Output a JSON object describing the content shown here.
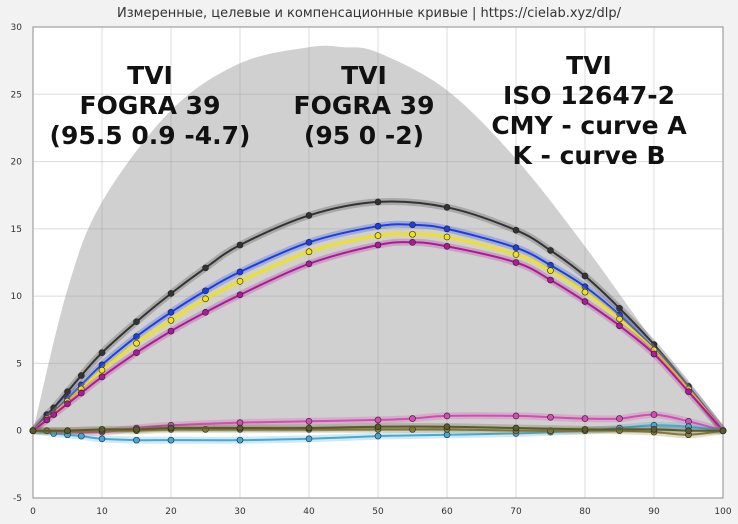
{
  "chart_data": {
    "type": "line",
    "title": "Измеренные, целевые и компенсационные кривые | https://cielab.xyz/dlp/",
    "xlim": [
      0,
      100
    ],
    "ylim": [
      -5,
      30
    ],
    "x_ticks": [
      0,
      10,
      20,
      30,
      40,
      50,
      60,
      70,
      80,
      90,
      100
    ],
    "y_ticks": [
      -5,
      0,
      5,
      10,
      15,
      20,
      25,
      30
    ],
    "grid": true,
    "annotations": [
      {
        "id": "ann1",
        "lines": [
          "TVI",
          "FOGRA 39",
          "(95.5 0.9 -4.7)"
        ]
      },
      {
        "id": "ann2",
        "lines": [
          "TVI",
          "FOGRA 39",
          "(95 0 -2)"
        ]
      },
      {
        "id": "ann3",
        "lines": [
          "TVI",
          "ISO 12647-2",
          "CMY - curve A",
          "K - curve B"
        ]
      }
    ],
    "tolerance_band": {
      "color": "#c8c8c8",
      "x": [
        0,
        5,
        10,
        20,
        30,
        40,
        45,
        50,
        60,
        70,
        80,
        90,
        100
      ],
      "y": [
        0,
        10.5,
        17,
        23.8,
        27.3,
        28.5,
        28.5,
        28.1,
        25.3,
        20.2,
        13.7,
        6.6,
        0
      ]
    },
    "series": [
      {
        "color": "#333333",
        "x": [
          0,
          2,
          3,
          5,
          7,
          10,
          15,
          20,
          25,
          30,
          40,
          50,
          60,
          70,
          75,
          80,
          85,
          90,
          95,
          100
        ],
        "y": [
          0,
          1.2,
          1.7,
          2.9,
          4.1,
          5.8,
          8.1,
          10.2,
          12.1,
          13.8,
          16.0,
          17.0,
          16.6,
          14.9,
          13.4,
          11.5,
          9.1,
          6.4,
          3.3,
          0
        ]
      },
      {
        "color": "#1a3ee6",
        "x": [
          0,
          2,
          3,
          5,
          7,
          10,
          15,
          20,
          25,
          30,
          40,
          50,
          55,
          60,
          70,
          75,
          80,
          85,
          90,
          95,
          100
        ],
        "y": [
          0,
          1.0,
          1.4,
          2.4,
          3.4,
          4.9,
          7.0,
          8.8,
          10.4,
          11.8,
          14.0,
          15.2,
          15.3,
          15.0,
          13.6,
          12.3,
          10.7,
          8.6,
          6.1,
          3.2,
          0
        ]
      },
      {
        "color": "#f0e21a",
        "x": [
          0,
          2,
          3,
          5,
          7,
          10,
          15,
          20,
          25,
          30,
          40,
          50,
          55,
          60,
          70,
          75,
          80,
          85,
          90,
          95,
          100
        ],
        "y": [
          0,
          0.9,
          1.3,
          2.2,
          3.1,
          4.5,
          6.5,
          8.2,
          9.8,
          11.1,
          13.3,
          14.5,
          14.6,
          14.4,
          13.1,
          11.9,
          10.3,
          8.3,
          6.0,
          3.1,
          0
        ]
      },
      {
        "color": "#b0189a",
        "x": [
          0,
          2,
          3,
          5,
          7,
          10,
          15,
          20,
          25,
          30,
          40,
          50,
          55,
          60,
          70,
          75,
          80,
          85,
          90,
          95,
          100
        ],
        "y": [
          0,
          0.8,
          1.2,
          2.0,
          2.8,
          4.0,
          5.8,
          7.4,
          8.8,
          10.1,
          12.4,
          13.8,
          14.0,
          13.7,
          12.5,
          11.2,
          9.6,
          7.8,
          5.7,
          2.9,
          0
        ]
      },
      {
        "color": "#d64bb5",
        "x": [
          0,
          5,
          10,
          15,
          20,
          30,
          40,
          50,
          55,
          60,
          70,
          75,
          80,
          85,
          90,
          95,
          100
        ],
        "y": [
          0,
          -0.1,
          -0.1,
          0.2,
          0.4,
          0.6,
          0.7,
          0.8,
          0.9,
          1.1,
          1.1,
          1.0,
          0.9,
          0.9,
          1.2,
          0.7,
          0
        ]
      },
      {
        "color": "#45a9d8",
        "x": [
          0,
          3,
          5,
          7,
          10,
          15,
          20,
          30,
          40,
          50,
          60,
          70,
          75,
          80,
          85,
          90,
          95,
          100
        ],
        "y": [
          0,
          -0.2,
          -0.3,
          -0.4,
          -0.6,
          -0.7,
          -0.7,
          -0.7,
          -0.6,
          -0.4,
          -0.3,
          -0.2,
          -0.1,
          0,
          0.2,
          0.4,
          0.3,
          0
        ]
      },
      {
        "color": "#8a7d3a",
        "x": [
          0,
          2,
          5,
          10,
          15,
          20,
          25,
          30,
          40,
          50,
          55,
          60,
          70,
          75,
          80,
          85,
          90,
          95,
          100
        ],
        "y": [
          0,
          0,
          0,
          0,
          0,
          0.1,
          0.1,
          0.1,
          0.1,
          0.1,
          0.1,
          0.1,
          0,
          0,
          0,
          0,
          -0.1,
          -0.3,
          0
        ]
      },
      {
        "color": "#5a5a2a",
        "x": [
          0,
          5,
          10,
          15,
          20,
          30,
          40,
          50,
          60,
          70,
          80,
          90,
          95,
          100
        ],
        "y": [
          0,
          0,
          0.1,
          0.1,
          0.2,
          0.2,
          0.2,
          0.3,
          0.3,
          0.2,
          0.1,
          0.1,
          0,
          0
        ]
      }
    ]
  }
}
